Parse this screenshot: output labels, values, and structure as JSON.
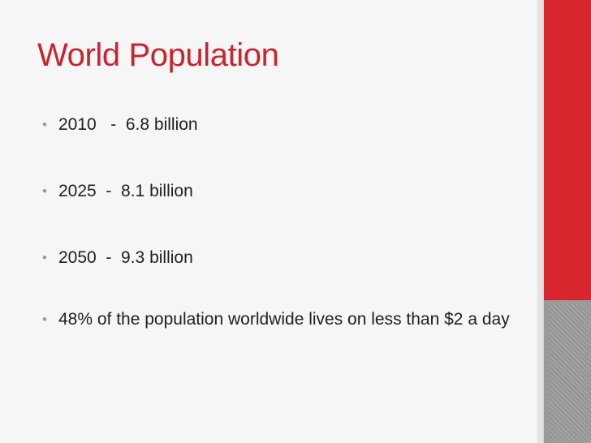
{
  "slide": {
    "title": "World Population",
    "bullets": [
      {
        "text": "2010   -  6.8 billion"
      },
      {
        "text": "2025  -  8.1 billion"
      },
      {
        "text": "2050  -  9.3 billion"
      },
      {
        "text": "48% of the population worldwide lives on less than $2 a day"
      }
    ],
    "bullet_glyph": "•"
  },
  "colors": {
    "title": "#c8242e",
    "accent_band": "#d7262d",
    "lower_band": "#9a9a9a",
    "background": "#f6f6f6",
    "body_text": "#202020"
  }
}
